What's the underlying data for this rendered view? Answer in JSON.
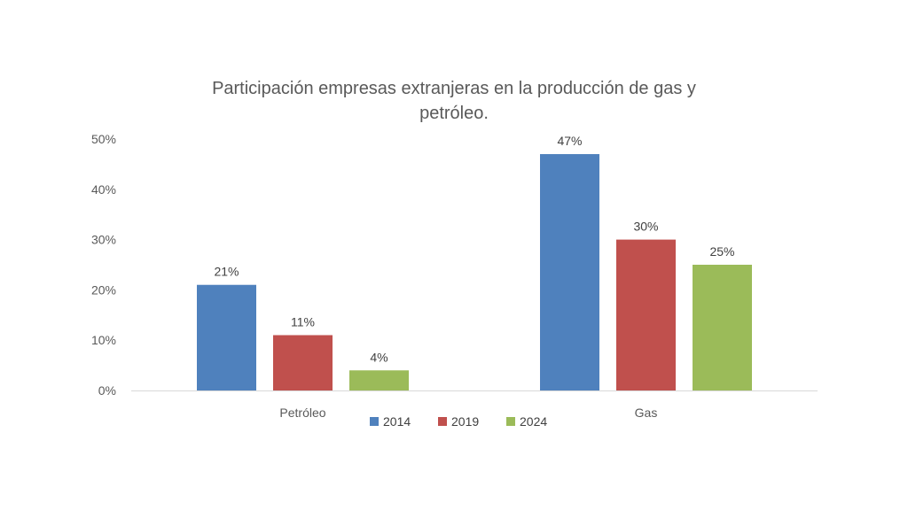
{
  "chart_data": {
    "type": "bar",
    "title": "Participación empresas extranjeras en la producción de gas y petróleo.",
    "categories": [
      "Petróleo",
      "Gas"
    ],
    "series": [
      {
        "name": "2014",
        "values": [
          21,
          47
        ],
        "labels": [
          "21%",
          "47%"
        ],
        "color": "#4F81BD"
      },
      {
        "name": "2019",
        "values": [
          11,
          30
        ],
        "labels": [
          "11%",
          "30%"
        ],
        "color": "#C0504D"
      },
      {
        "name": "2024",
        "values": [
          4,
          25
        ],
        "labels": [
          "4%",
          "25%"
        ],
        "color": "#9BBB59"
      }
    ],
    "yticks": [
      0,
      10,
      20,
      30,
      40,
      50
    ],
    "ytick_labels": [
      "0%",
      "10%",
      "20%",
      "30%",
      "40%",
      "50%"
    ],
    "ylim": [
      0,
      50
    ],
    "xlabel": "",
    "ylabel": "",
    "grid": false,
    "legend_position": "bottom"
  }
}
